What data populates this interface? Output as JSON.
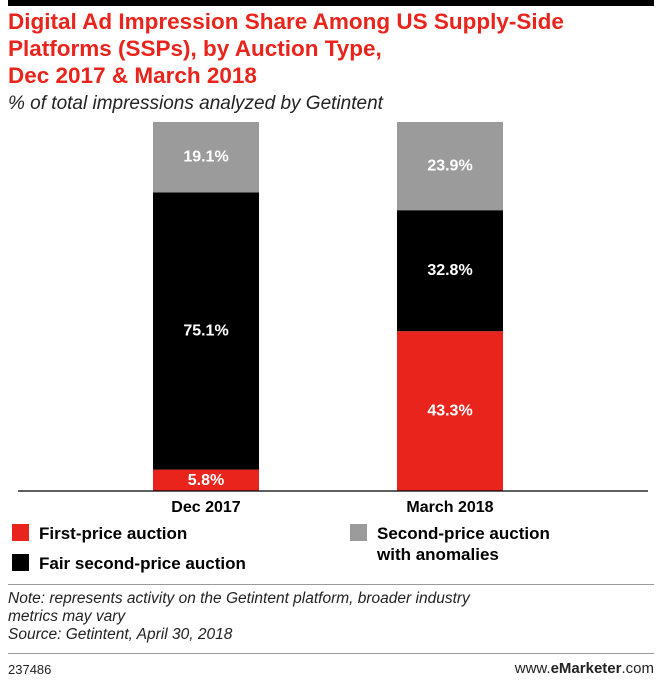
{
  "header": {
    "title_lines": [
      "Digital Ad Impression Share Among US Supply-Side",
      "Platforms (SSPs), by Auction Type,",
      "Dec 2017 & March 2018"
    ],
    "subtitle": "% of total impressions analyzed by Getintent"
  },
  "chart_data": {
    "type": "bar",
    "stacked": true,
    "categories": [
      "Dec 2017",
      "March 2018"
    ],
    "ylim": [
      0,
      100
    ],
    "grid": false,
    "series": [
      {
        "name": "First-price auction",
        "color": "#e8241c",
        "label_color": "#ffffff",
        "values": [
          5.8,
          43.3
        ],
        "labels": [
          "5.8%",
          "43.3%"
        ]
      },
      {
        "name": "Fair second-price auction",
        "color": "#000000",
        "label_color": "#ffffff",
        "values": [
          75.1,
          32.8
        ],
        "labels": [
          "75.1%",
          "32.8%"
        ]
      },
      {
        "name": "Second-price auction with anomalies",
        "color": "#9b9b9b",
        "label_color": "#ffffff",
        "values": [
          19.1,
          23.9
        ],
        "labels": [
          "19.1%",
          "23.9%"
        ]
      }
    ]
  },
  "legend": {
    "placement": "bottom",
    "items": [
      {
        "label": "First-price auction",
        "color": "#e8241c"
      },
      {
        "label": "Fair second-price auction",
        "color": "#000000"
      },
      {
        "label_lines": [
          "Second-price auction",
          "with anomalies"
        ],
        "color": "#9b9b9b"
      }
    ]
  },
  "footer": {
    "note_lines": [
      "Note: represents activity on the Getintent platform, broader industry",
      "metrics may vary"
    ],
    "source": "Source: Getintent, April 30, 2018",
    "chart_id": "237486",
    "brand_prefix": "www.",
    "brand_bold": "eMarketer",
    "brand_suffix": ".com"
  }
}
